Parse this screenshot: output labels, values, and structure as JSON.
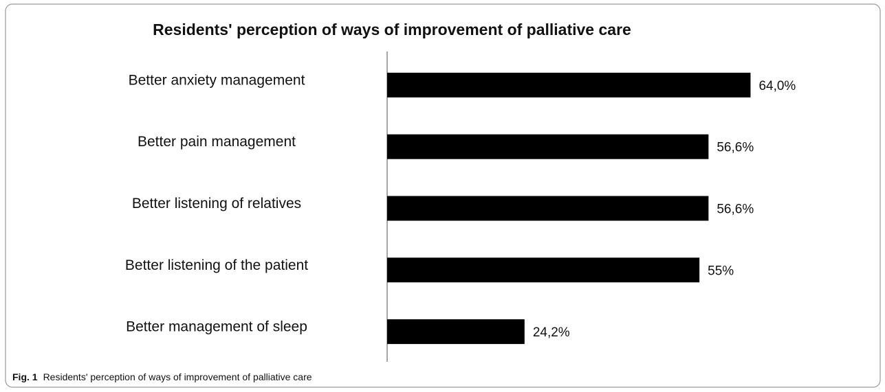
{
  "chart_data": {
    "type": "barh",
    "title": "Residents' perception of ways of improvement of palliative care",
    "categories": [
      "Better anxiety management",
      "Better pain management",
      "Better listening of relatives",
      "Better listening of the patient",
      "Better management of sleep"
    ],
    "values": [
      64.0,
      56.6,
      56.6,
      55,
      24.2
    ],
    "value_labels": [
      "64,0%",
      "56,6%",
      "56,6%",
      "55%",
      "24,2%"
    ],
    "color": "#000000",
    "xlim": [
      0,
      70
    ]
  },
  "caption": {
    "label": "Fig. 1",
    "text": "Residents' perception of ways of improvement of palliative care"
  }
}
